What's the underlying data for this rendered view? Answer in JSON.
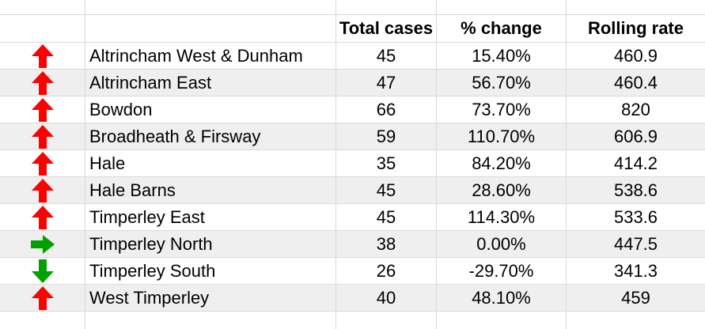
{
  "header": {
    "total_cases": "Total cases",
    "pct_change": "% change",
    "rolling_rate": "Rolling rate"
  },
  "colors": {
    "up": "#ff0000",
    "right": "#00a000",
    "down": "#00a000",
    "alt_row": "#efefef",
    "grid": "#d9d9d9"
  },
  "rows": [
    {
      "trend": "up-arrow-icon",
      "area": "Altrincham West & Dunham",
      "total": "45",
      "change": "15.40%",
      "rate": "460.9"
    },
    {
      "trend": "up-arrow-icon",
      "area": "Altrincham East",
      "total": "47",
      "change": "56.70%",
      "rate": "460.4"
    },
    {
      "trend": "up-arrow-icon",
      "area": "Bowdon",
      "total": "66",
      "change": "73.70%",
      "rate": "820"
    },
    {
      "trend": "up-arrow-icon",
      "area": "Broadheath & Firsway",
      "total": "59",
      "change": "110.70%",
      "rate": "606.9"
    },
    {
      "trend": "up-arrow-icon",
      "area": "Hale",
      "total": "35",
      "change": "84.20%",
      "rate": "414.2"
    },
    {
      "trend": "up-arrow-icon",
      "area": "Hale Barns",
      "total": "45",
      "change": "28.60%",
      "rate": "538.6"
    },
    {
      "trend": "up-arrow-icon",
      "area": "Timperley East",
      "total": "45",
      "change": "114.30%",
      "rate": "533.6"
    },
    {
      "trend": "right-arrow-icon",
      "area": "Timperley North",
      "total": "38",
      "change": "0.00%",
      "rate": "447.5"
    },
    {
      "trend": "down-arrow-icon",
      "area": "Timperley South",
      "total": "26",
      "change": "-29.70%",
      "rate": "341.3"
    },
    {
      "trend": "up-arrow-icon",
      "area": "West Timperley",
      "total": "40",
      "change": "48.10%",
      "rate": "459"
    }
  ]
}
